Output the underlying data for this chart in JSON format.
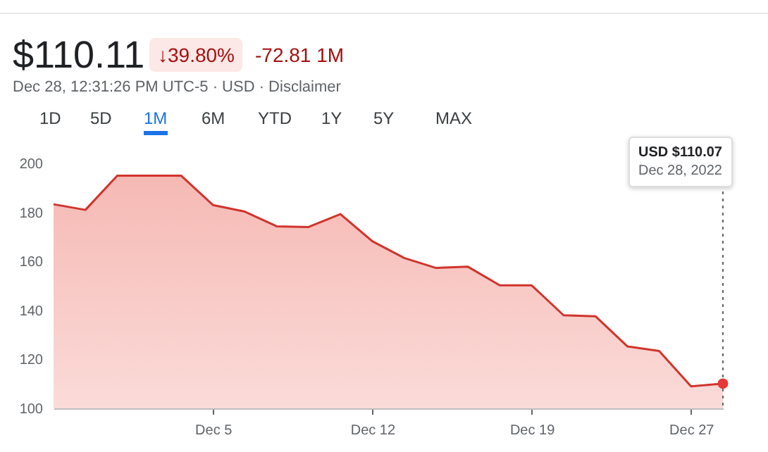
{
  "chart_data": {
    "type": "area",
    "title": "$110.11",
    "subtitle": "Dec 28, 12:31:26 PM UTC-5 · USD · Disclaimer",
    "annotations": [
      "↓39.80%",
      "-72.81 1M",
      "1D",
      "5D",
      "1M",
      "6M",
      "YTD",
      "1Y",
      "5Y",
      "MAX",
      "USD $110.07",
      "Dec 28, 2022"
    ],
    "categories": [
      null,
      null,
      null,
      null,
      null,
      "Dec 5",
      null,
      null,
      null,
      null,
      "Dec 12",
      null,
      null,
      null,
      null,
      "Dec 19",
      null,
      null,
      null,
      null,
      "Dec 27",
      null
    ],
    "series": [
      {
        "color": "#d0342c",
        "values": [
          183.3,
          181,
          195,
          195,
          195,
          183,
          180.3,
          174.3,
          174,
          179.3,
          168.2,
          161.4,
          157.3,
          157.8,
          150.2,
          150.2,
          138,
          137.6,
          125.3,
          123.4,
          109,
          110.1
        ]
      }
    ],
    "ylim": [
      100,
      200
    ],
    "yticks": [
      100,
      120,
      140,
      160,
      180,
      200
    ],
    "grid": false,
    "marker": "none",
    "line_style": "solid"
  }
}
